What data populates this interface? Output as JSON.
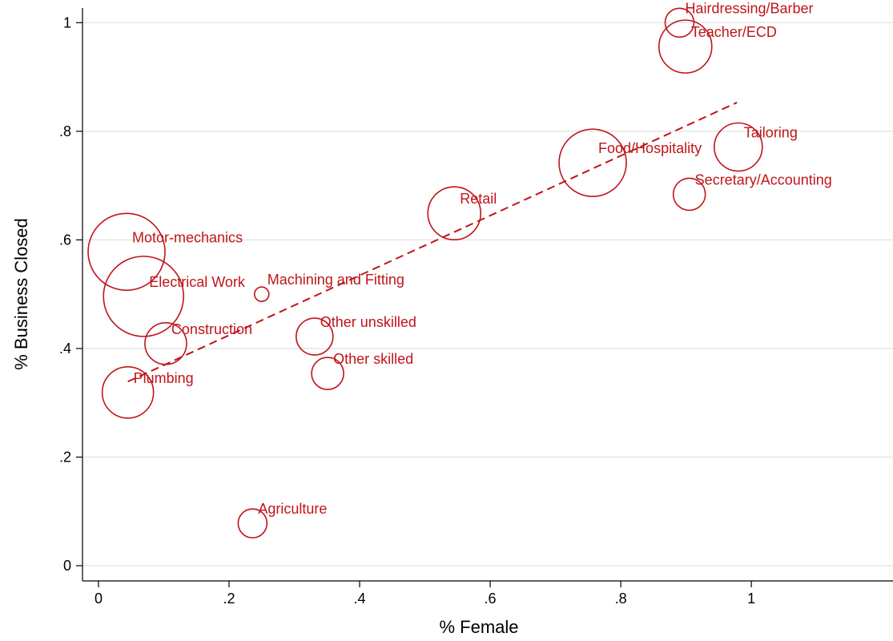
{
  "chart_data": {
    "type": "scatter",
    "xlabel": "% Female",
    "ylabel": "% Business Closed",
    "color": "#c0141a",
    "grid": true,
    "xlim": [
      -0.0245,
      1.217
    ],
    "ylim": [
      -0.028,
      1.027
    ],
    "xticks": [
      0,
      {
        "value": 0.2,
        "label": ".2"
      },
      {
        "value": 0.4,
        "label": ".4"
      },
      {
        "value": 0.6,
        "label": ".6"
      },
      {
        "value": 0.8,
        "label": ".8"
      },
      1
    ],
    "yticks": [
      0,
      {
        "value": 0.2,
        "label": ".2"
      },
      {
        "value": 0.4,
        "label": ".4"
      },
      {
        "value": 0.6,
        "label": ".6"
      },
      {
        "value": 0.8,
        "label": ".8"
      },
      1
    ],
    "labels": [
      "Hairdressing/Barber",
      "Teacher/ECD",
      "Tailoring",
      "Food/Hospitality",
      "Secretary/Accounting",
      "Retail",
      "Motor-mechanics",
      "Electrical Work",
      "Machining and Fitting",
      "Construction",
      "Other unskilled",
      "Other skilled",
      "Plumbing",
      "Agriculture"
    ],
    "x": [
      0.89,
      0.899,
      0.98,
      0.757,
      0.905,
      0.545,
      0.043,
      0.069,
      0.25,
      0.103,
      0.331,
      0.351,
      0.045,
      0.236
    ],
    "values": [
      1.0,
      0.956,
      0.771,
      0.742,
      0.684,
      0.649,
      0.578,
      0.496,
      0.5,
      0.409,
      0.422,
      0.354,
      0.319,
      0.078
    ],
    "sizes": [
      18,
      33,
      30,
      42,
      20,
      33,
      48,
      50,
      9,
      26,
      23,
      20,
      32,
      18
    ],
    "fit": {
      "x": [
        0.045,
        0.978
      ],
      "values": [
        0.339,
        0.853
      ]
    }
  }
}
